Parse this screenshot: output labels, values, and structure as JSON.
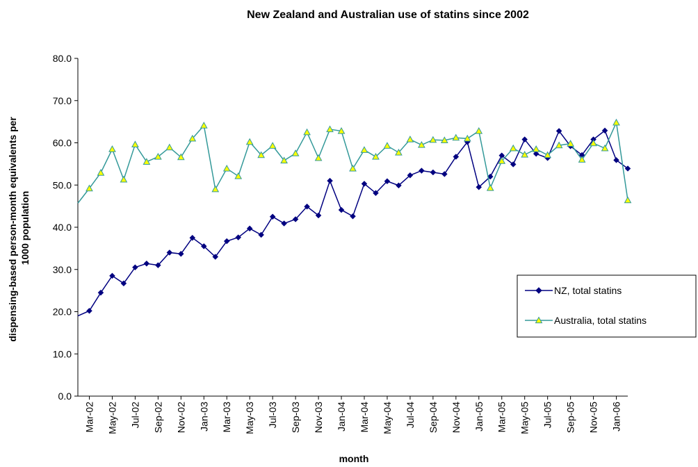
{
  "chart_data": {
    "type": "line",
    "title": "New Zealand and Australian use of statins since 2002",
    "xlabel": "month",
    "ylabel_lines": [
      "dispensing-based person-month equivalents per",
      "1000 population"
    ],
    "ylim": [
      0,
      80
    ],
    "yticks": [
      "0.0",
      "10.0",
      "20.0",
      "30.0",
      "40.0",
      "50.0",
      "60.0",
      "70.0",
      "80.0"
    ],
    "categories": [
      "Feb-02",
      "Mar-02",
      "Apr-02",
      "May-02",
      "Jun-02",
      "Jul-02",
      "Aug-02",
      "Sep-02",
      "Oct-02",
      "Nov-02",
      "Dec-02",
      "Jan-03",
      "Feb-03",
      "Mar-03",
      "Apr-03",
      "May-03",
      "Jun-03",
      "Jul-03",
      "Aug-03",
      "Sep-03",
      "Oct-03",
      "Nov-03",
      "Dec-03",
      "Jan-04",
      "Feb-04",
      "Mar-04",
      "Apr-04",
      "May-04",
      "Jun-04",
      "Jul-04",
      "Aug-04",
      "Sep-04",
      "Oct-04",
      "Nov-04",
      "Dec-04",
      "Jan-05",
      "Feb-05",
      "Mar-05",
      "Apr-05",
      "May-05",
      "Jun-05",
      "Jul-05",
      "Aug-05",
      "Sep-05",
      "Oct-05",
      "Nov-05",
      "Dec-05",
      "Jan-06",
      "Feb-06"
    ],
    "tick_labels": [
      "Mar-02",
      "May-02",
      "Jul-02",
      "Sep-02",
      "Nov-02",
      "Jan-03",
      "Mar-03",
      "May-03",
      "Jul-03",
      "Sep-03",
      "Nov-03",
      "Jan-04",
      "Mar-04",
      "May-04",
      "Jul-04",
      "Sep-04",
      "Nov-04",
      "Jan-05",
      "Mar-05",
      "May-05",
      "Jul-05",
      "Sep-05",
      "Nov-05",
      "Jan-06"
    ],
    "series": [
      {
        "name": "NZ, total statins",
        "color": "#000080",
        "marker": "diamond",
        "values": [
          19.0,
          20.2,
          24.5,
          28.5,
          26.7,
          30.5,
          31.4,
          31.0,
          34.0,
          33.7,
          37.5,
          35.5,
          33.0,
          36.7,
          37.6,
          39.7,
          38.2,
          42.5,
          40.9,
          41.9,
          44.9,
          42.8,
          51.0,
          44.1,
          42.6,
          50.3,
          48.1,
          50.9,
          49.9,
          52.3,
          53.4,
          53.0,
          52.6,
          56.7,
          60.2,
          49.5,
          52.0,
          57.0,
          54.9,
          60.8,
          57.4,
          56.4,
          62.8,
          59.2,
          57.1,
          60.8,
          62.9,
          55.9,
          53.9
        ]
      },
      {
        "name": "Australia, total statins",
        "color": "#339999",
        "marker": "triangle",
        "marker_color": "#ffff00",
        "values": [
          45.7,
          49.2,
          52.9,
          58.5,
          51.3,
          59.6,
          55.5,
          56.7,
          58.9,
          56.6,
          61.0,
          64.1,
          49.0,
          53.9,
          52.1,
          60.2,
          57.1,
          59.3,
          55.8,
          57.5,
          62.5,
          56.4,
          63.2,
          62.8,
          53.9,
          58.3,
          56.7,
          59.3,
          57.7,
          60.8,
          59.5,
          60.7,
          60.6,
          61.2,
          61.0,
          62.8,
          49.3,
          55.7,
          58.7,
          57.2,
          58.5,
          57.1,
          59.4,
          59.8,
          56.0,
          59.9,
          58.7,
          64.8,
          46.4
        ]
      }
    ],
    "legend": "right-middle",
    "grid": false
  }
}
